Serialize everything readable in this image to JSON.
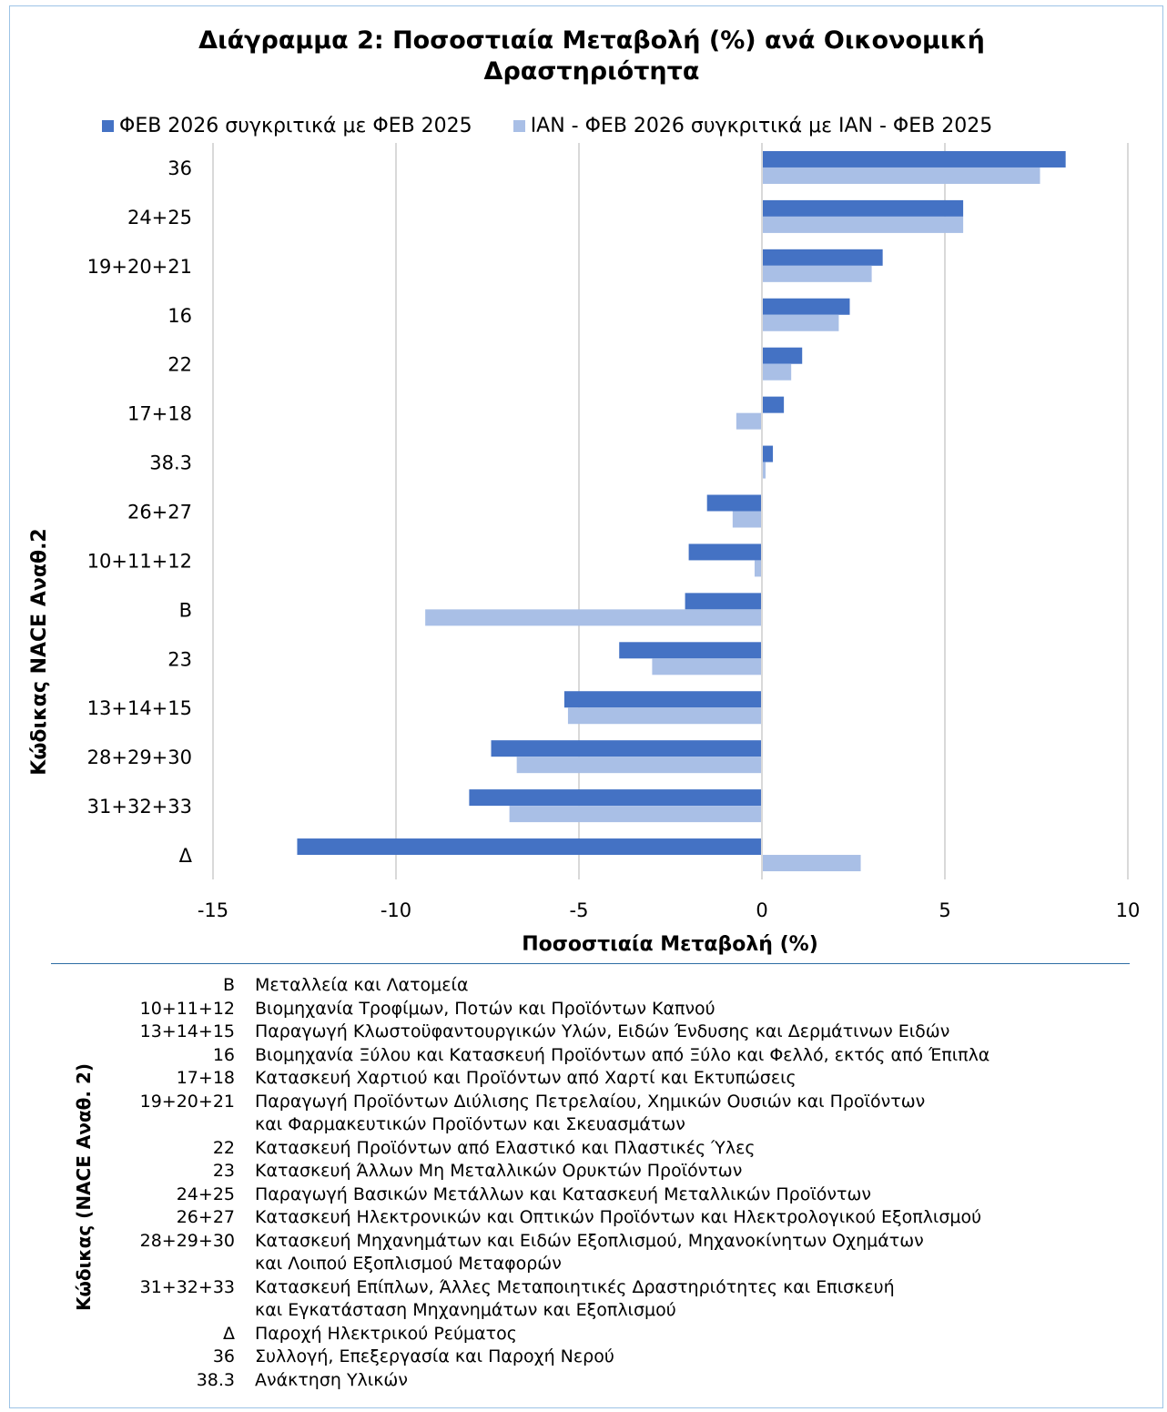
{
  "colors": {
    "series1": "#4472c4",
    "series2": "#a9bfe6",
    "grid": "#d9d9d9"
  },
  "chart_data": {
    "type": "bar",
    "orientation": "horizontal",
    "title": "Διάγραμμα 2: Ποσοστιαία Μεταβολή (%) ανά Οικονομική Δραστηριότητα",
    "xlabel": "Ποσοστιαία Μεταβολή (%)",
    "ylabel": "Κώδικας NACE Αναθ.2",
    "xlim": [
      -15,
      10
    ],
    "xticks": [
      -15,
      -10,
      -5,
      0,
      5,
      10
    ],
    "grid": true,
    "legend_position": "top",
    "categories": [
      "36",
      "24+25",
      "19+20+21",
      "16",
      "22",
      "17+18",
      "38.3",
      "26+27",
      "10+11+12",
      "B",
      "23",
      "13+14+15",
      "28+29+30",
      "31+32+33",
      "Δ"
    ],
    "series": [
      {
        "name": "ΦΕΒ 2026 συγκριτικά με ΦΕΒ 2025",
        "values": [
          8.3,
          5.5,
          3.3,
          2.4,
          1.1,
          0.6,
          0.3,
          -1.5,
          -2.0,
          -2.1,
          -3.9,
          -5.4,
          -7.4,
          -8.0,
          -12.7
        ]
      },
      {
        "name": "ΙΑΝ - ΦΕΒ 2026 συγκριτικά με ΙΑΝ - ΦΕΒ 2025",
        "values": [
          7.6,
          5.5,
          3.0,
          2.1,
          0.8,
          -0.7,
          0.1,
          -0.8,
          -0.2,
          -9.2,
          -3.0,
          -5.3,
          -6.7,
          -6.9,
          2.7
        ]
      }
    ]
  },
  "reference": {
    "title": "Κώδικας (NACE Αναθ. 2)",
    "rows": [
      {
        "code": "B",
        "desc": "Μεταλλεία και Λατομεία"
      },
      {
        "code": "10+11+12",
        "desc": "Βιομηχανία Τροφίμων, Ποτών και Προϊόντων Καπνού"
      },
      {
        "code": "13+14+15",
        "desc": "Παραγωγή Κλωστοϋφαντουργικών Υλών, Ειδών Ένδυσης και Δερμάτινων Ειδών"
      },
      {
        "code": "16",
        "desc": "Βιομηχανία Ξύλου και Κατασκευή Προϊόντων από Ξύλο και Φελλό, εκτός από Έπιπλα"
      },
      {
        "code": "17+18",
        "desc": "Κατασκευή Χαρτιού και Προϊόντων από Χαρτί και Εκτυπώσεις"
      },
      {
        "code": "19+20+21",
        "desc": "Παραγωγή Προϊόντων Διύλισης Πετρελαίου, Χημικών Ουσιών και Προϊόντων\nκαι Φαρμακευτικών Προϊόντων και Σκευασμάτων"
      },
      {
        "code": "22",
        "desc": "Κατασκευή Προϊόντων από Ελαστικό και Πλαστικές Ύλες"
      },
      {
        "code": "23",
        "desc": "Κατασκευή Άλλων Μη Μεταλλικών Ορυκτών Προϊόντων"
      },
      {
        "code": "24+25",
        "desc": "Παραγωγή Βασικών Μετάλλων και Κατασκευή Μεταλλικών Προϊόντων"
      },
      {
        "code": "26+27",
        "desc": "Κατασκευή Ηλεκτρονικών και Οπτικών Προϊόντων και Ηλεκτρολογικού Εξοπλισμού"
      },
      {
        "code": "28+29+30",
        "desc": "Κατασκευή Μηχανημάτων και Ειδών Εξοπλισμού, Μηχανοκίνητων Οχημάτων\nκαι Λοιπού Εξοπλισμού Μεταφορών"
      },
      {
        "code": "31+32+33",
        "desc": "Κατασκευή Επίπλων, Άλλες Μεταποιητικές Δραστηριότητες και Επισκευή\nκαι Εγκατάσταση Μηχανημάτων και Εξοπλισμού"
      },
      {
        "code": "Δ",
        "desc": "Παροχή Ηλεκτρικού Ρεύματος"
      },
      {
        "code": "36",
        "desc": "Συλλογή, Επεξεργασία και Παροχή Νερού"
      },
      {
        "code": "38.3",
        "desc": "Ανάκτηση Υλικών"
      }
    ]
  }
}
